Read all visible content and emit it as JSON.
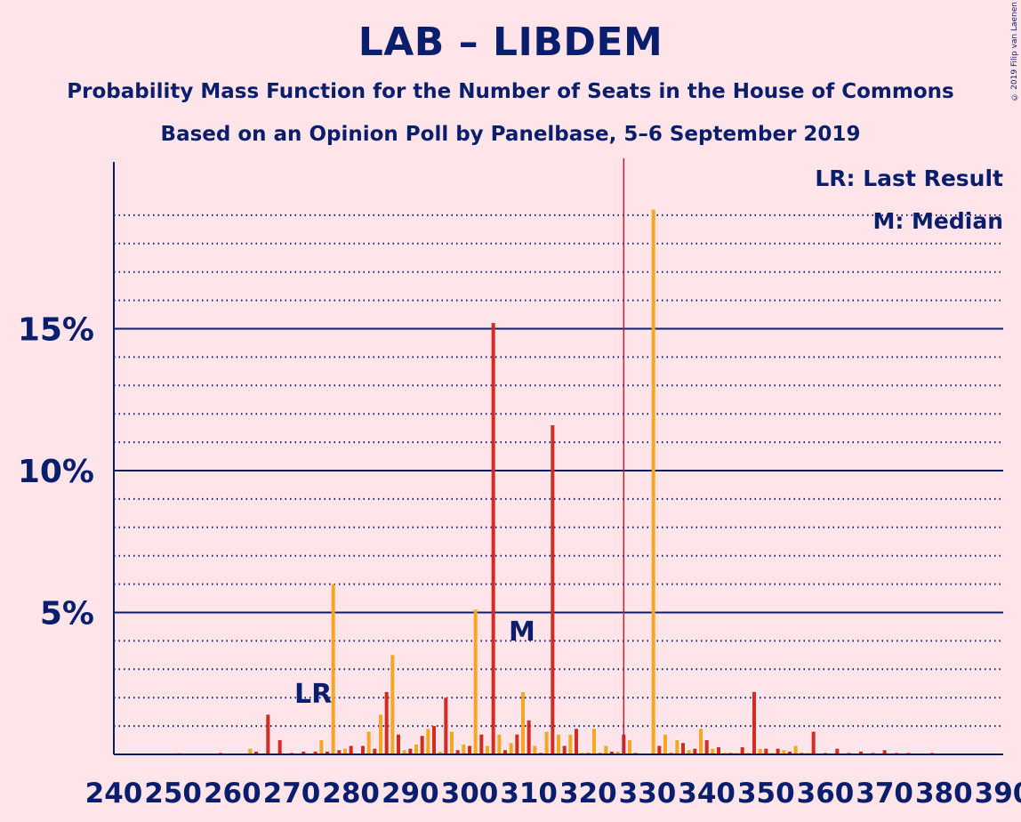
{
  "header": {
    "title": "LAB – LIBDEM",
    "subtitle": "Probability Mass Function for the Number of Seats in the House of Commons",
    "subtitle2": "Based on an Opinion Poll by Panelbase, 5–6 September 2019",
    "copyright": "© 2019 Filip van Laenen"
  },
  "legend": {
    "lr": "LR: Last Result",
    "median": "M: Median"
  },
  "markers": {
    "lr_label": "LR",
    "median_label": "M"
  },
  "colors": {
    "background": "#FFE4E9",
    "text": "#0A1E6E",
    "red": "#D42A20",
    "orange": "#F5A623",
    "majority_line": "#C0203A"
  },
  "chart_data": {
    "type": "bar",
    "title": "LAB – LIBDEM",
    "xlabel": "",
    "ylabel": "",
    "xlim": [
      240,
      390
    ],
    "ylim": [
      0,
      20.9
    ],
    "x_ticks": [
      240,
      250,
      260,
      270,
      280,
      290,
      300,
      310,
      320,
      330,
      340,
      350,
      360,
      370,
      380,
      390
    ],
    "y_ticks": [
      {
        "value": 5,
        "label": "5%"
      },
      {
        "value": 10,
        "label": "10%"
      },
      {
        "value": 15,
        "label": "15%"
      }
    ],
    "grid": "dotted every 1%, solid at 5%",
    "last_result": 273,
    "median": 309,
    "majority": 326,
    "series": [
      {
        "seats": [
          251,
          258,
          263,
          264,
          266,
          268,
          270,
          272,
          274,
          275,
          276,
          277,
          278,
          279,
          280,
          282,
          283,
          284,
          285,
          286,
          287,
          288,
          289,
          290,
          291,
          292,
          293,
          294,
          295,
          296,
          297,
          298,
          299,
          300,
          301,
          302,
          303,
          304,
          305,
          306,
          307,
          308,
          309,
          310,
          311,
          312,
          313,
          314,
          315,
          316,
          317,
          318,
          319,
          320,
          321,
          322,
          323,
          324,
          325,
          326,
          327,
          328,
          331,
          332,
          333,
          334,
          335,
          336,
          337,
          338,
          339,
          340,
          341,
          342,
          343,
          344,
          345,
          346,
          347,
          348,
          349,
          350,
          351,
          352,
          353,
          354,
          355,
          356,
          357,
          358,
          360,
          362,
          364,
          366,
          368,
          370,
          372,
          374,
          378
        ],
        "values": [
          0.05,
          0.05,
          0.2,
          0.1,
          1.4,
          0.5,
          0.05,
          0.1,
          0.1,
          0.5,
          0.1,
          6.0,
          0.15,
          0.2,
          0.3,
          0.3,
          0.8,
          0.2,
          1.4,
          2.2,
          3.5,
          0.7,
          0.15,
          0.2,
          0.35,
          0.65,
          0.9,
          1.0,
          0.1,
          2.0,
          0.8,
          0.15,
          0.35,
          0.3,
          5.1,
          0.7,
          0.3,
          15.2,
          0.7,
          0.15,
          0.4,
          0.7,
          2.2,
          1.2,
          0.3,
          0.05,
          0.8,
          11.6,
          0.7,
          0.3,
          0.7,
          0.9,
          0.05,
          0.05,
          0.9,
          0.05,
          0.3,
          0.1,
          0.1,
          0.7,
          0.5,
          0.05,
          19.2,
          0.3,
          0.7,
          0.05,
          0.5,
          0.4,
          0.15,
          0.2,
          0.9,
          0.5,
          0.2,
          0.25,
          0.05,
          0.05,
          0.05,
          0.25,
          0.05,
          2.2,
          0.2,
          0.2,
          0.05,
          0.2,
          0.15,
          0.1,
          0.3,
          0.05,
          0.05,
          0.8,
          0.05,
          0.2,
          0.05,
          0.1,
          0.05,
          0.15,
          0.05,
          0.05,
          0.05
        ]
      }
    ]
  }
}
